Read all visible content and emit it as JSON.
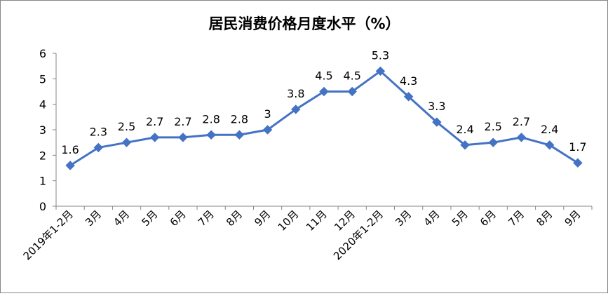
{
  "chart_data": {
    "type": "line",
    "title": "居民消费价格月度水平（%）",
    "categories": [
      "2019年1-2月",
      "3月",
      "4月",
      "5月",
      "6月",
      "7月",
      "8月",
      "9月",
      "10月",
      "11月",
      "12月",
      "2020年1-2月",
      "3月",
      "4月",
      "5月",
      "6月",
      "7月",
      "8月",
      "9月"
    ],
    "series": [
      {
        "values": [
          1.6,
          2.3,
          2.5,
          2.7,
          2.7,
          2.8,
          2.8,
          3,
          3.8,
          4.5,
          4.5,
          5.3,
          4.3,
          3.3,
          2.4,
          2.5,
          2.7,
          2.4,
          1.7
        ],
        "data_labels": [
          "1.6",
          "2.3",
          "2.5",
          "2.7",
          "2.7",
          "2.8",
          "2.8",
          "3",
          "3.8",
          "4.5",
          "4.5",
          "5.3",
          "4.3",
          "3.3",
          "2.4",
          "2.5",
          "2.7",
          "2.4",
          "1.7"
        ]
      }
    ],
    "ylim": [
      0,
      6
    ],
    "yticks": [
      "0",
      "1",
      "2",
      "3",
      "4",
      "5",
      "6"
    ],
    "grid": false,
    "legend": "none",
    "colors": {
      "line": "#4472C4",
      "marker": "#4472C4",
      "axis": "#868686"
    }
  }
}
